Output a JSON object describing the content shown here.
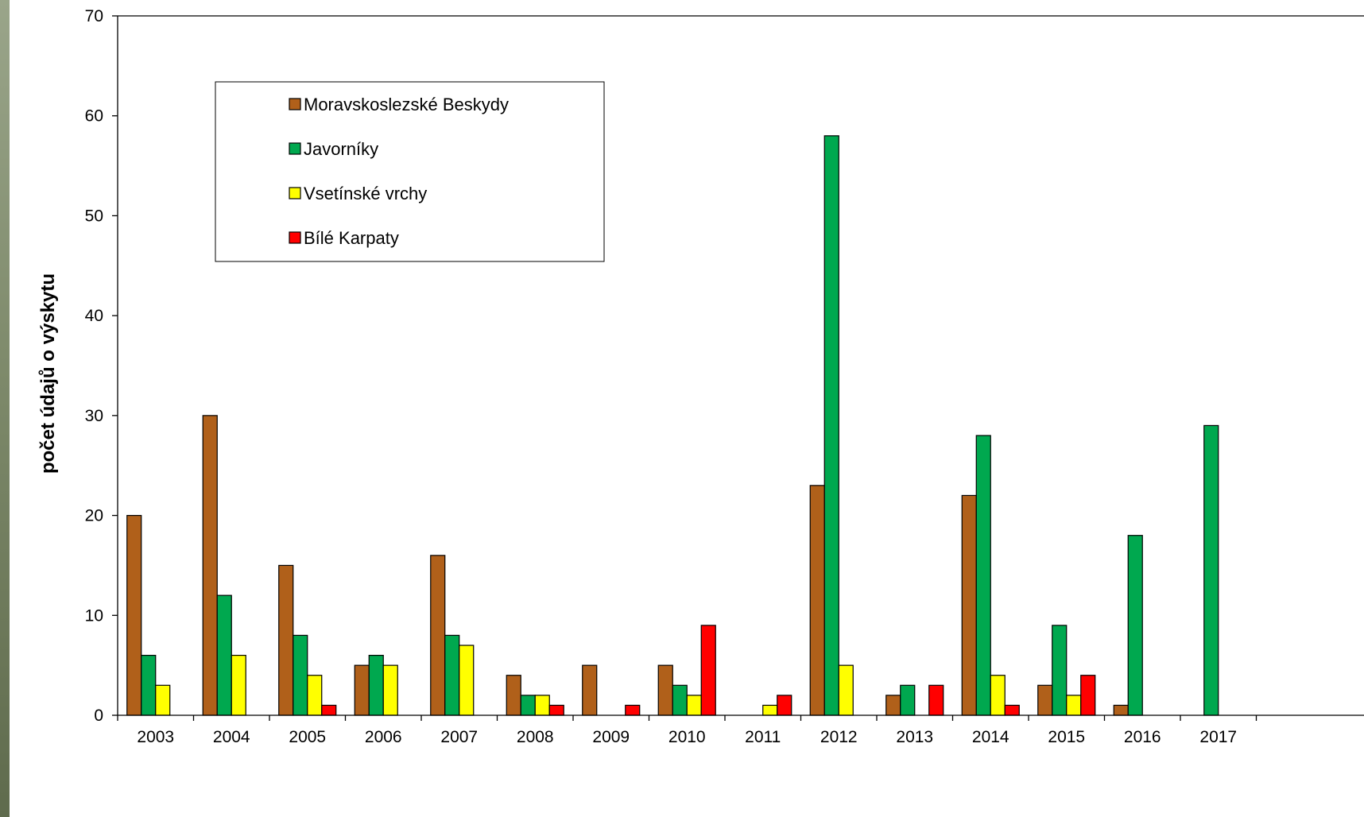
{
  "chart_data": {
    "type": "bar",
    "title": "",
    "xlabel": "",
    "ylabel": "počet údajů o výskytu",
    "ylim": [
      0,
      70
    ],
    "yticks": [
      0,
      10,
      20,
      30,
      40,
      50,
      60,
      70
    ],
    "grid": false,
    "legend_position": "top-left",
    "categories": [
      "2003",
      "2004",
      "2005",
      "2006",
      "2007",
      "2008",
      "2009",
      "2010",
      "2011",
      "2012",
      "2013",
      "2014",
      "2015",
      "2016",
      "2017"
    ],
    "series": [
      {
        "name": "Moravskoslezské Beskydy",
        "color": "#b0601a",
        "values": [
          20,
          30,
          15,
          5,
          16,
          4,
          5,
          5,
          0,
          23,
          2,
          22,
          3,
          1,
          0
        ]
      },
      {
        "name": "Javorníky",
        "color": "#00a84f",
        "values": [
          6,
          12,
          8,
          6,
          8,
          2,
          0,
          3,
          0,
          58,
          3,
          28,
          9,
          18,
          29
        ]
      },
      {
        "name": "Vsetínské vrchy",
        "color": "#ffff00",
        "values": [
          3,
          6,
          4,
          5,
          7,
          2,
          0,
          2,
          1,
          5,
          0,
          4,
          2,
          0,
          0
        ]
      },
      {
        "name": "Bílé Karpaty",
        "color": "#ff0000",
        "values": [
          0,
          0,
          1,
          0,
          0,
          1,
          1,
          9,
          2,
          0,
          3,
          1,
          4,
          0,
          0
        ]
      }
    ]
  }
}
